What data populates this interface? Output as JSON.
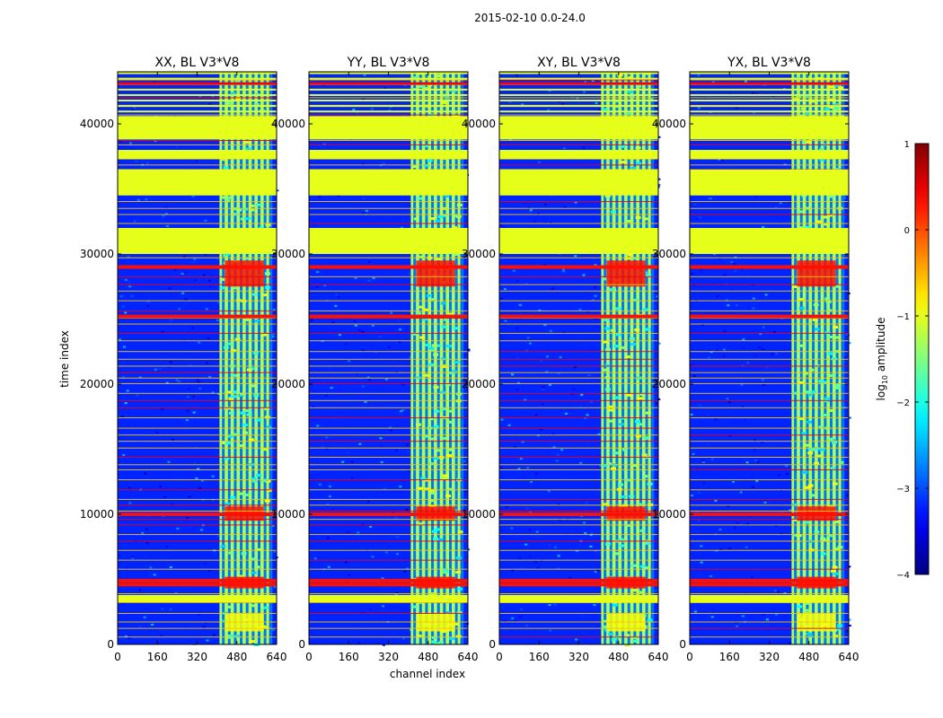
{
  "figure": {
    "suptitle": "2015-02-10 0.0-24.0",
    "xlabel": "channel index",
    "ylabel": "time index",
    "colorbar_label": "log",
    "colorbar_label_sub": "10",
    "colorbar_label_rest": " amplitude"
  },
  "chart_data": {
    "type": "heatmap",
    "colormap": "jet",
    "shared_axes": {
      "xlim": [
        0,
        640
      ],
      "ylim": [
        0,
        44000
      ],
      "xticks": [
        0,
        160,
        320,
        480,
        640
      ],
      "yticks": [
        0,
        10000,
        20000,
        30000,
        40000
      ]
    },
    "colorbar": {
      "range": [
        -4,
        1
      ],
      "ticks": [
        -4,
        -3,
        -2,
        -1,
        0,
        1
      ],
      "tick_labels": [
        "−4",
        "−3",
        "−2",
        "−1",
        "0",
        "1"
      ]
    },
    "panels": [
      {
        "title": "XX, BL V3*V8"
      },
      {
        "title": "YY, BL V3*V8"
      },
      {
        "title": "XY, BL V3*V8"
      },
      {
        "title": "YX, BL V3*V8"
      }
    ],
    "features": {
      "flagged_blocks_time": [
        [
          30000,
          32000
        ],
        [
          34500,
          36500
        ],
        [
          37300,
          38000
        ],
        [
          38800,
          40500
        ],
        [
          3200,
          3800
        ]
      ],
      "active_band_channel_start": [
        410,
        410,
        410,
        410
      ],
      "active_band_channel_end": [
        610,
        610,
        610,
        610
      ],
      "strong_rfi_times": [
        4600,
        4900,
        10000,
        25200,
        29000
      ],
      "background_log_amp": -3.2,
      "band_log_amp": -1.3,
      "flag_log_amp": -1.0,
      "rfi_log_amp": 0.3
    }
  }
}
